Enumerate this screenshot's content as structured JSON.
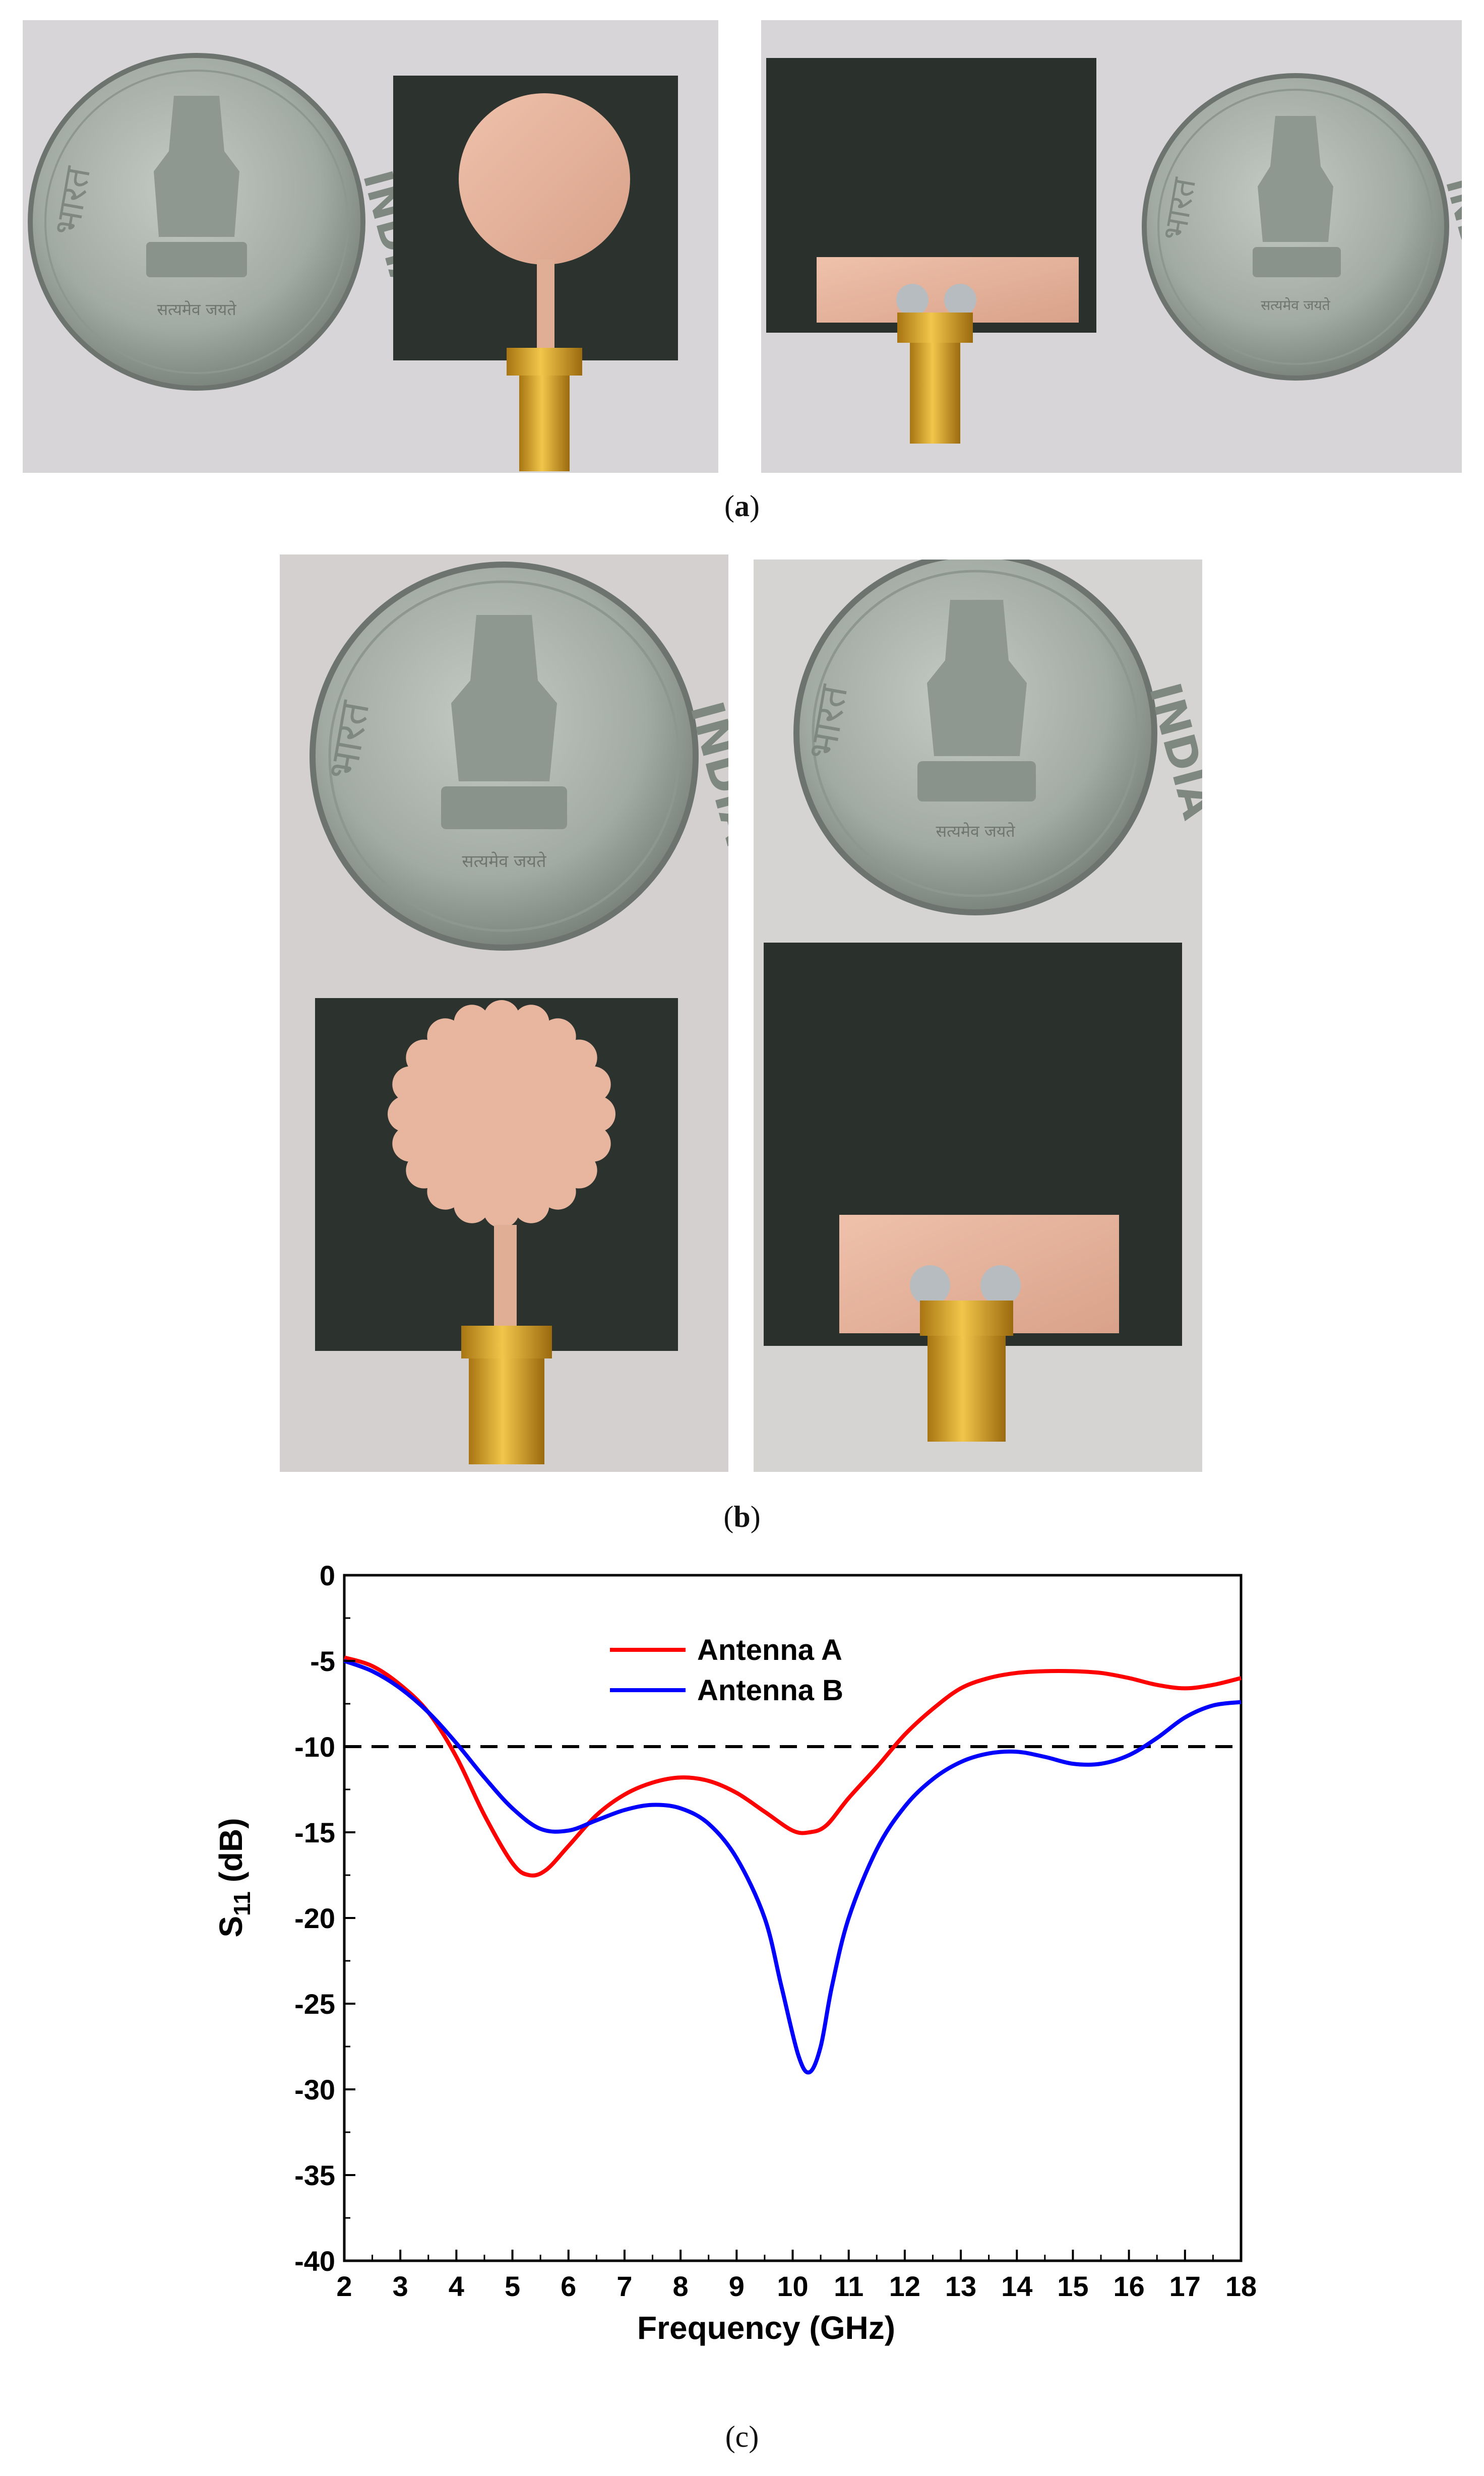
{
  "figure": {
    "panel_a": {
      "caption_open": "(",
      "caption_letter": "a",
      "caption_close": ")",
      "photos": [
        {
          "coin_left_text": "भारत",
          "coin_right_text": "INDIA",
          "coin_motto": "सत्यमेव जयते",
          "patch": "circular"
        },
        {
          "coin_left_text": "भारत",
          "coin_right_text": "INDIA",
          "coin_motto": "सत्यमेव जयते",
          "patch": "ground"
        }
      ]
    },
    "panel_b": {
      "caption_open": "(",
      "caption_letter": "b",
      "caption_close": ")",
      "photos": [
        {
          "coin_left_text": "भारत",
          "coin_right_text": "INDIA",
          "coin_motto": "सत्यमेव जयते",
          "patch": "scalloped"
        },
        {
          "coin_left_text": "भारत",
          "coin_right_text": "INDIA",
          "coin_motto": "सत्यमेव जयते",
          "patch": "ground"
        }
      ]
    },
    "panel_c": {
      "caption": "(c)"
    }
  },
  "colors": {
    "antenna_a": "#ff0000",
    "antenna_b": "#0000ff",
    "reference": "#000000",
    "copper": "#e7b29a",
    "substrate": "#2c332f",
    "coin": "#a7aea8",
    "gold": "#d7a21c"
  },
  "chart_data": {
    "type": "line",
    "xlabel": "Frequency (GHz)",
    "ylabel": "S11 (dB)",
    "ylabel_main": "S",
    "ylabel_sub": "11",
    "ylabel_rest": " (dB)",
    "xlim": [
      2,
      18
    ],
    "ylim": [
      -40,
      0
    ],
    "xticks": [
      2,
      3,
      4,
      5,
      6,
      7,
      8,
      9,
      10,
      11,
      12,
      13,
      14,
      15,
      16,
      17,
      18
    ],
    "yticks": [
      0,
      -5,
      -10,
      -15,
      -20,
      -25,
      -30,
      -35,
      -40
    ],
    "grid": false,
    "legend_position": "top-center",
    "reference_line": {
      "y": -10,
      "style": "dashed"
    },
    "series": [
      {
        "name": "Antenna A",
        "x": [
          2,
          2.5,
          3,
          3.5,
          4,
          4.5,
          5,
          5.3,
          5.6,
          6,
          6.5,
          7,
          7.5,
          8,
          8.5,
          9,
          9.5,
          10,
          10.3,
          10.6,
          11,
          11.5,
          12,
          12.5,
          13,
          13.5,
          14,
          14.5,
          15,
          15.5,
          16,
          16.5,
          17,
          17.5,
          18
        ],
        "y": [
          -4.8,
          -5.3,
          -6.4,
          -8.0,
          -10.6,
          -14.0,
          -16.8,
          -17.5,
          -17.2,
          -15.8,
          -14.0,
          -12.8,
          -12.1,
          -11.8,
          -12.0,
          -12.7,
          -13.8,
          -14.9,
          -15.0,
          -14.6,
          -13.0,
          -11.2,
          -9.3,
          -7.8,
          -6.6,
          -6.0,
          -5.7,
          -5.6,
          -5.6,
          -5.7,
          -6.0,
          -6.4,
          -6.6,
          -6.4,
          -6.0
        ]
      },
      {
        "name": "Antenna B",
        "x": [
          2,
          2.5,
          3,
          3.5,
          4,
          4.5,
          5,
          5.5,
          6,
          6.5,
          7,
          7.5,
          8,
          8.5,
          9,
          9.5,
          9.8,
          10.1,
          10.3,
          10.5,
          10.7,
          11,
          11.5,
          12,
          12.5,
          13,
          13.5,
          14,
          14.5,
          15,
          15.5,
          16,
          16.5,
          17,
          17.5,
          18
        ],
        "y": [
          -5.0,
          -5.6,
          -6.6,
          -8.0,
          -9.8,
          -11.8,
          -13.6,
          -14.8,
          -14.9,
          -14.3,
          -13.7,
          -13.4,
          -13.6,
          -14.5,
          -16.5,
          -20.0,
          -24.0,
          -28.0,
          -29.0,
          -27.5,
          -24.0,
          -20.0,
          -16.0,
          -13.5,
          -11.9,
          -10.9,
          -10.4,
          -10.3,
          -10.6,
          -11.0,
          -11.0,
          -10.5,
          -9.5,
          -8.3,
          -7.6,
          -7.4
        ]
      }
    ]
  }
}
